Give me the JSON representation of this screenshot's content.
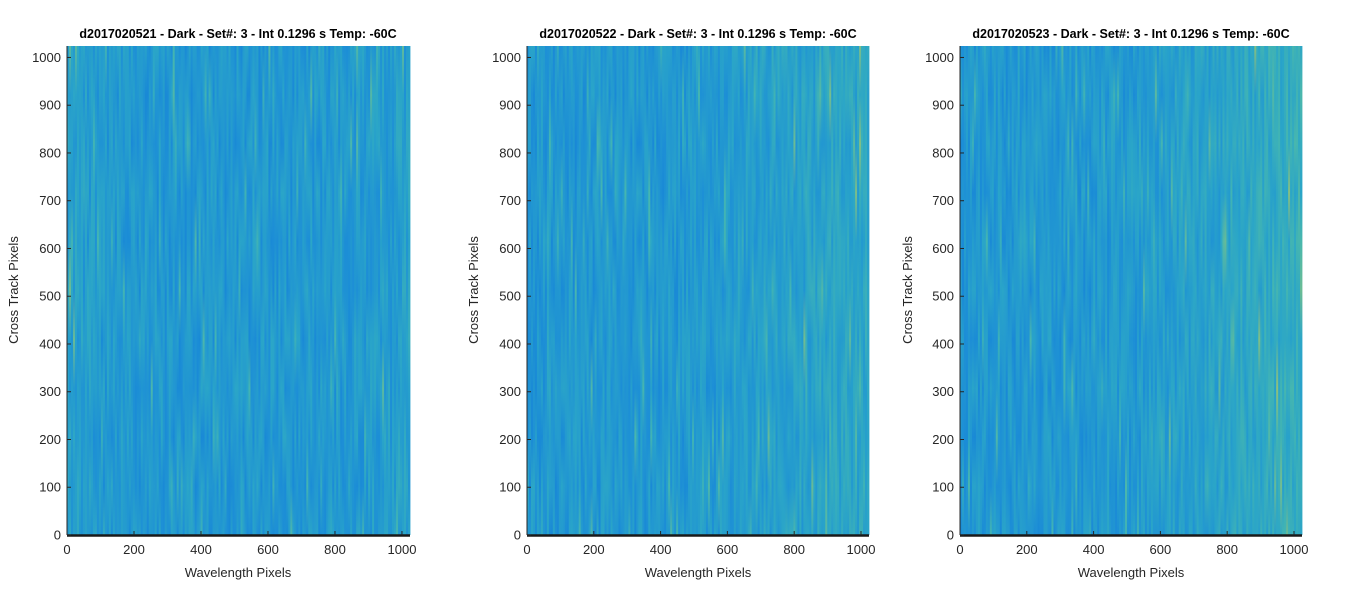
{
  "figure": {
    "panel_count": 3
  },
  "chart_data": [
    {
      "type": "heatmap",
      "title": "d2017020521 - Dark - Set#: 3 - Int 0.1296 s Temp: -60C",
      "xlabel": "Wavelength Pixels",
      "ylabel": "Cross Track Pixels",
      "xlim": [
        0,
        1024
      ],
      "ylim": [
        0,
        1024
      ],
      "xticks": [
        0,
        200,
        400,
        600,
        800,
        1000
      ],
      "yticks": [
        0,
        100,
        200,
        300,
        400,
        500,
        600,
        700,
        800,
        900,
        1000
      ],
      "colormap": [
        "#0b74d6",
        "#1d8fd6",
        "#2aa5c8",
        "#45b6b0",
        "#8fc17a",
        "#c9c45a"
      ],
      "dominant_color": "#2196d1",
      "description": "dark-frame noise, slightly brighter (yellow streaks) near left and right edges"
    },
    {
      "type": "heatmap",
      "title": "d2017020522 - Dark - Set#: 3 - Int 0.1296 s Temp: -60C",
      "xlabel": "Wavelength Pixels",
      "ylabel": "Cross Track Pixels",
      "xlim": [
        0,
        1024
      ],
      "ylim": [
        0,
        1024
      ],
      "xticks": [
        0,
        200,
        400,
        600,
        800,
        1000
      ],
      "yticks": [
        0,
        100,
        200,
        300,
        400,
        500,
        600,
        700,
        800,
        900,
        1000
      ],
      "colormap": [
        "#0b74d6",
        "#1d8fd6",
        "#2aa5c8",
        "#45b6b0",
        "#8fc17a",
        "#c9c45a"
      ],
      "dominant_color": "#2196d1",
      "description": "dark-frame noise, brighter toward high wavelength pixels (right side)"
    },
    {
      "type": "heatmap",
      "title": "d2017020523 - Dark - Set#: 3 - Int 0.1296 s Temp: -60C",
      "xlabel": "Wavelength Pixels",
      "ylabel": "Cross Track Pixels",
      "xlim": [
        0,
        1024
      ],
      "ylim": [
        0,
        1024
      ],
      "xticks": [
        0,
        200,
        400,
        600,
        800,
        1000
      ],
      "yticks": [
        0,
        100,
        200,
        300,
        400,
        500,
        600,
        700,
        800,
        900,
        1000
      ],
      "colormap": [
        "#0b74d6",
        "#1d8fd6",
        "#2aa5c8",
        "#45b6b0",
        "#8fc17a",
        "#c9c45a"
      ],
      "dominant_color": "#2196d1",
      "description": "dark-frame noise, strongest brightening toward right edge (wavelength > 900)"
    }
  ]
}
